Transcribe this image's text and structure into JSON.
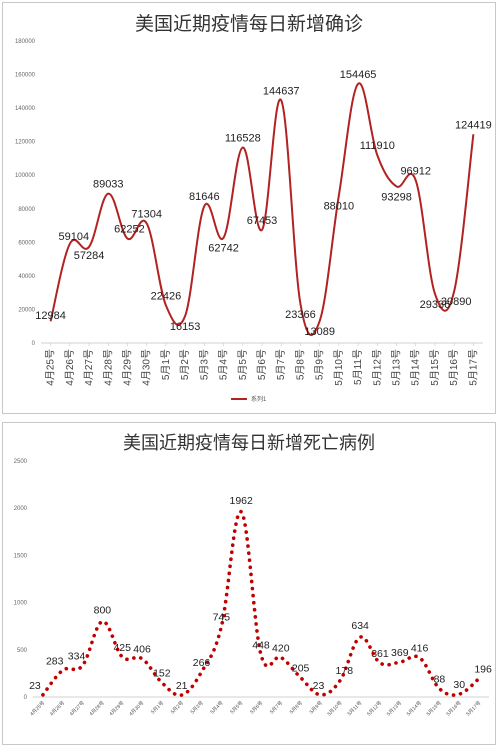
{
  "chart_data": [
    {
      "type": "line",
      "title": "美国近期疫情每日新增确诊",
      "categories": [
        "4月25号",
        "4月26号",
        "4月27号",
        "4月28号",
        "4月29号",
        "4月30号",
        "5月1号",
        "5月2号",
        "5月3号",
        "5月4号",
        "5月5号",
        "5月6号",
        "5月7号",
        "5月8号",
        "5月9号",
        "5月10号",
        "5月11号",
        "5月12号",
        "5月13号",
        "5月14号",
        "5月15号",
        "5月16号",
        "5月17号"
      ],
      "series": [
        {
          "name": "系列1",
          "values": [
            12984,
            59104,
            57284,
            89033,
            62252,
            71304,
            22426,
            16153,
            81646,
            62742,
            116528,
            67453,
            144637,
            23366,
            13089,
            88010,
            154465,
            111910,
            93298,
            96912,
            29336,
            30890,
            124419
          ],
          "color": "#b22222"
        }
      ],
      "yticks": [
        "0",
        "20000",
        "40000",
        "60000",
        "80000",
        "100000",
        "120000",
        "140000",
        "160000",
        "180000"
      ],
      "ylim": [
        0,
        180000
      ],
      "legend": "bottom",
      "line_style": "smooth"
    },
    {
      "type": "line",
      "title": "美国近期疫情每日新增死亡病例",
      "categories": [
        "4月25号",
        "4月26号",
        "4月27号",
        "4月28号",
        "4月29号",
        "4月30号",
        "5月1号",
        "5月2号",
        "5月3号",
        "5月4号",
        "5月5号",
        "5月6号",
        "5月7号",
        "5月8号",
        "5月9号",
        "5月10号",
        "5月11号",
        "5月12号",
        "5月13号",
        "5月14号",
        "5月15号",
        "5月16号",
        "5月17号"
      ],
      "series": [
        {
          "values": [
            23,
            283,
            334,
            800,
            425,
            406,
            152,
            21,
            266,
            745,
            1962,
            448,
            420,
            205,
            23,
            178,
            634,
            361,
            369,
            416,
            88,
            30,
            196
          ],
          "color": "#c00000"
        }
      ],
      "yticks": [
        "0",
        "500",
        "1000",
        "1500",
        "2000",
        "2500"
      ],
      "ylim": [
        0,
        2500
      ],
      "line_style": "dotted"
    }
  ]
}
